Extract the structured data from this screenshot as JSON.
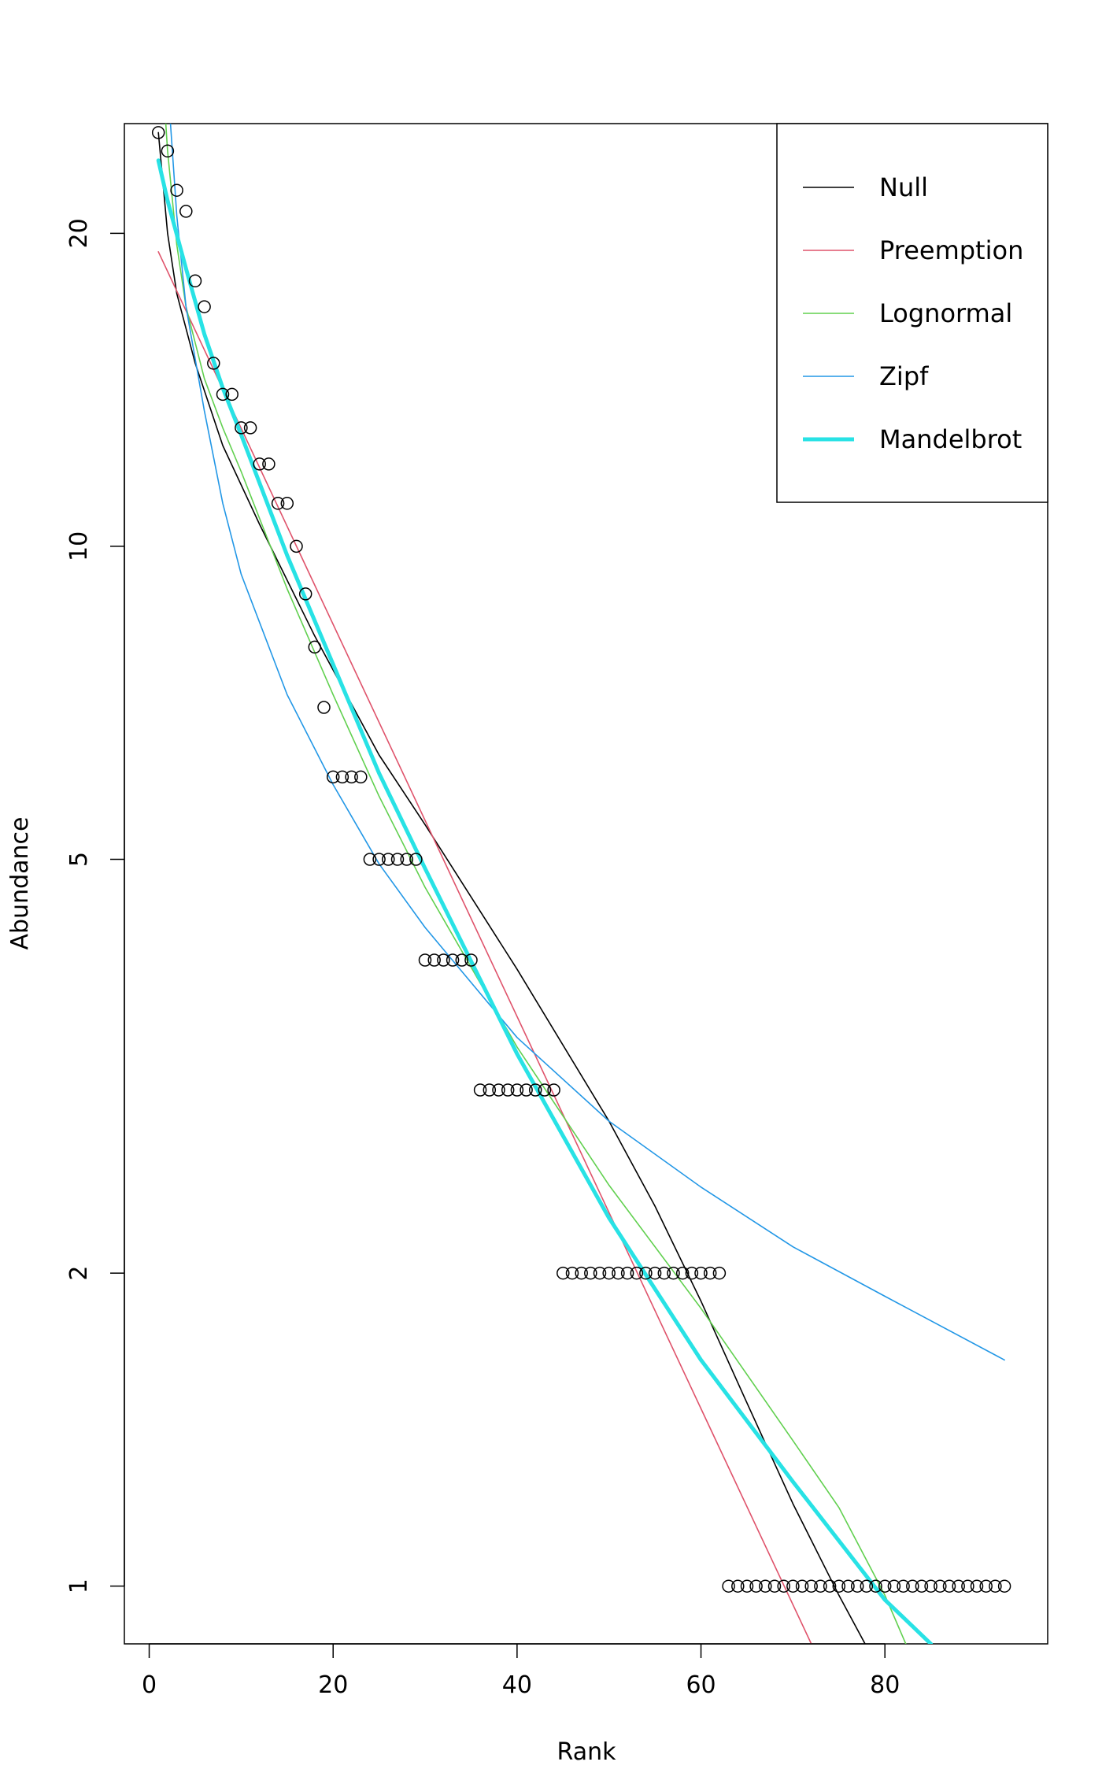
{
  "chart_data": {
    "type": "scatter",
    "title": "",
    "xlabel": "Rank",
    "ylabel": "Abundance",
    "xlim": [
      -2.7,
      97.7
    ],
    "ylim": [
      0.88,
      25.5
    ],
    "ylog": true,
    "grid": false,
    "legend_position": "top-right",
    "x_ticks": [
      0,
      20,
      40,
      60,
      80
    ],
    "y_ticks": [
      1,
      2,
      5,
      10,
      20
    ],
    "points": {
      "rank": [
        1,
        2,
        3,
        4,
        5,
        6,
        7,
        8,
        9,
        10,
        11,
        12,
        13,
        14,
        15,
        16,
        17,
        18,
        19,
        20,
        21,
        22,
        23,
        24,
        25,
        26,
        27,
        28,
        29,
        30,
        31,
        32,
        33,
        34,
        35,
        36,
        37,
        38,
        39,
        40,
        41,
        42,
        43,
        44,
        45,
        46,
        47,
        48,
        49,
        50,
        51,
        52,
        53,
        54,
        55,
        56,
        57,
        58,
        59,
        60,
        61,
        62,
        63,
        64,
        65,
        66,
        67,
        68,
        69,
        70,
        71,
        72,
        73,
        74,
        75,
        76,
        77,
        78,
        79,
        80,
        81,
        82,
        83,
        84,
        85,
        86,
        87,
        88,
        89,
        90,
        91,
        92,
        93
      ],
      "abundance": [
        25,
        24,
        22,
        21,
        18,
        17,
        15,
        14,
        14,
        13,
        13,
        12,
        12,
        11,
        11,
        10,
        9,
        8,
        7,
        6,
        6,
        6,
        6,
        5,
        5,
        5,
        5,
        5,
        5,
        4,
        4,
        4,
        4,
        4,
        4,
        3,
        3,
        3,
        3,
        3,
        3,
        3,
        3,
        3,
        2,
        2,
        2,
        2,
        2,
        2,
        2,
        2,
        2,
        2,
        2,
        2,
        2,
        2,
        2,
        2,
        2,
        2,
        1,
        1,
        1,
        1,
        1,
        1,
        1,
        1,
        1,
        1,
        1,
        1,
        1,
        1,
        1,
        1,
        1,
        1,
        1,
        1,
        1,
        1,
        1,
        1,
        1,
        1,
        1,
        1,
        1,
        1,
        1
      ]
    },
    "series": [
      {
        "name": "Null",
        "color": "#000000",
        "line_width": 1,
        "x": [
          1,
          2,
          3,
          5,
          8,
          12,
          18,
          25,
          30,
          40,
          50,
          55,
          60,
          65,
          70,
          75,
          78,
          80
        ],
        "y": [
          25,
          20,
          17.5,
          15,
          12.5,
          10.5,
          8.2,
          6.3,
          5.4,
          3.92,
          2.8,
          2.32,
          1.88,
          1.5,
          1.2,
          0.98,
          0.875,
          0.82
        ]
      },
      {
        "name": "Preemption",
        "color": "#DF536B",
        "line_width": 1,
        "x": [
          1,
          72
        ],
        "y": [
          19.2,
          0.88
        ]
      },
      {
        "name": "Lognormal",
        "color": "#61D04F",
        "line_width": 1,
        "x": [
          1.5,
          2,
          3,
          4,
          6,
          8,
          10,
          15,
          20,
          25,
          30,
          40,
          50,
          60,
          70,
          75,
          80,
          83
        ],
        "y": [
          28,
          24,
          19.5,
          17,
          14.5,
          13,
          11.8,
          9.1,
          7.2,
          5.75,
          4.7,
          3.3,
          2.43,
          1.85,
          1.38,
          1.19,
          0.98,
          0.85
        ]
      },
      {
        "name": "Zipf",
        "color": "#2297E6",
        "line_width": 1,
        "x": [
          2,
          3,
          4,
          6,
          8,
          10,
          15,
          20,
          25,
          30,
          40,
          50,
          60,
          70,
          80,
          93
        ],
        "y": [
          28,
          20.8,
          17,
          13.5,
          11,
          9.4,
          7.2,
          5.9,
          4.95,
          4.3,
          3.37,
          2.8,
          2.42,
          2.12,
          1.9,
          1.65
        ]
      },
      {
        "name": "Mandelbrot",
        "color": "#28E2E5",
        "line_width": 3,
        "x": [
          1,
          2,
          4,
          6,
          8,
          10,
          15,
          20,
          25,
          30,
          40,
          50,
          60,
          70,
          80,
          85
        ],
        "y": [
          23.5,
          21.5,
          18.5,
          16,
          14.2,
          12.8,
          9.8,
          7.7,
          6.05,
          4.9,
          3.25,
          2.26,
          1.65,
          1.26,
          0.97,
          0.88
        ]
      }
    ]
  }
}
